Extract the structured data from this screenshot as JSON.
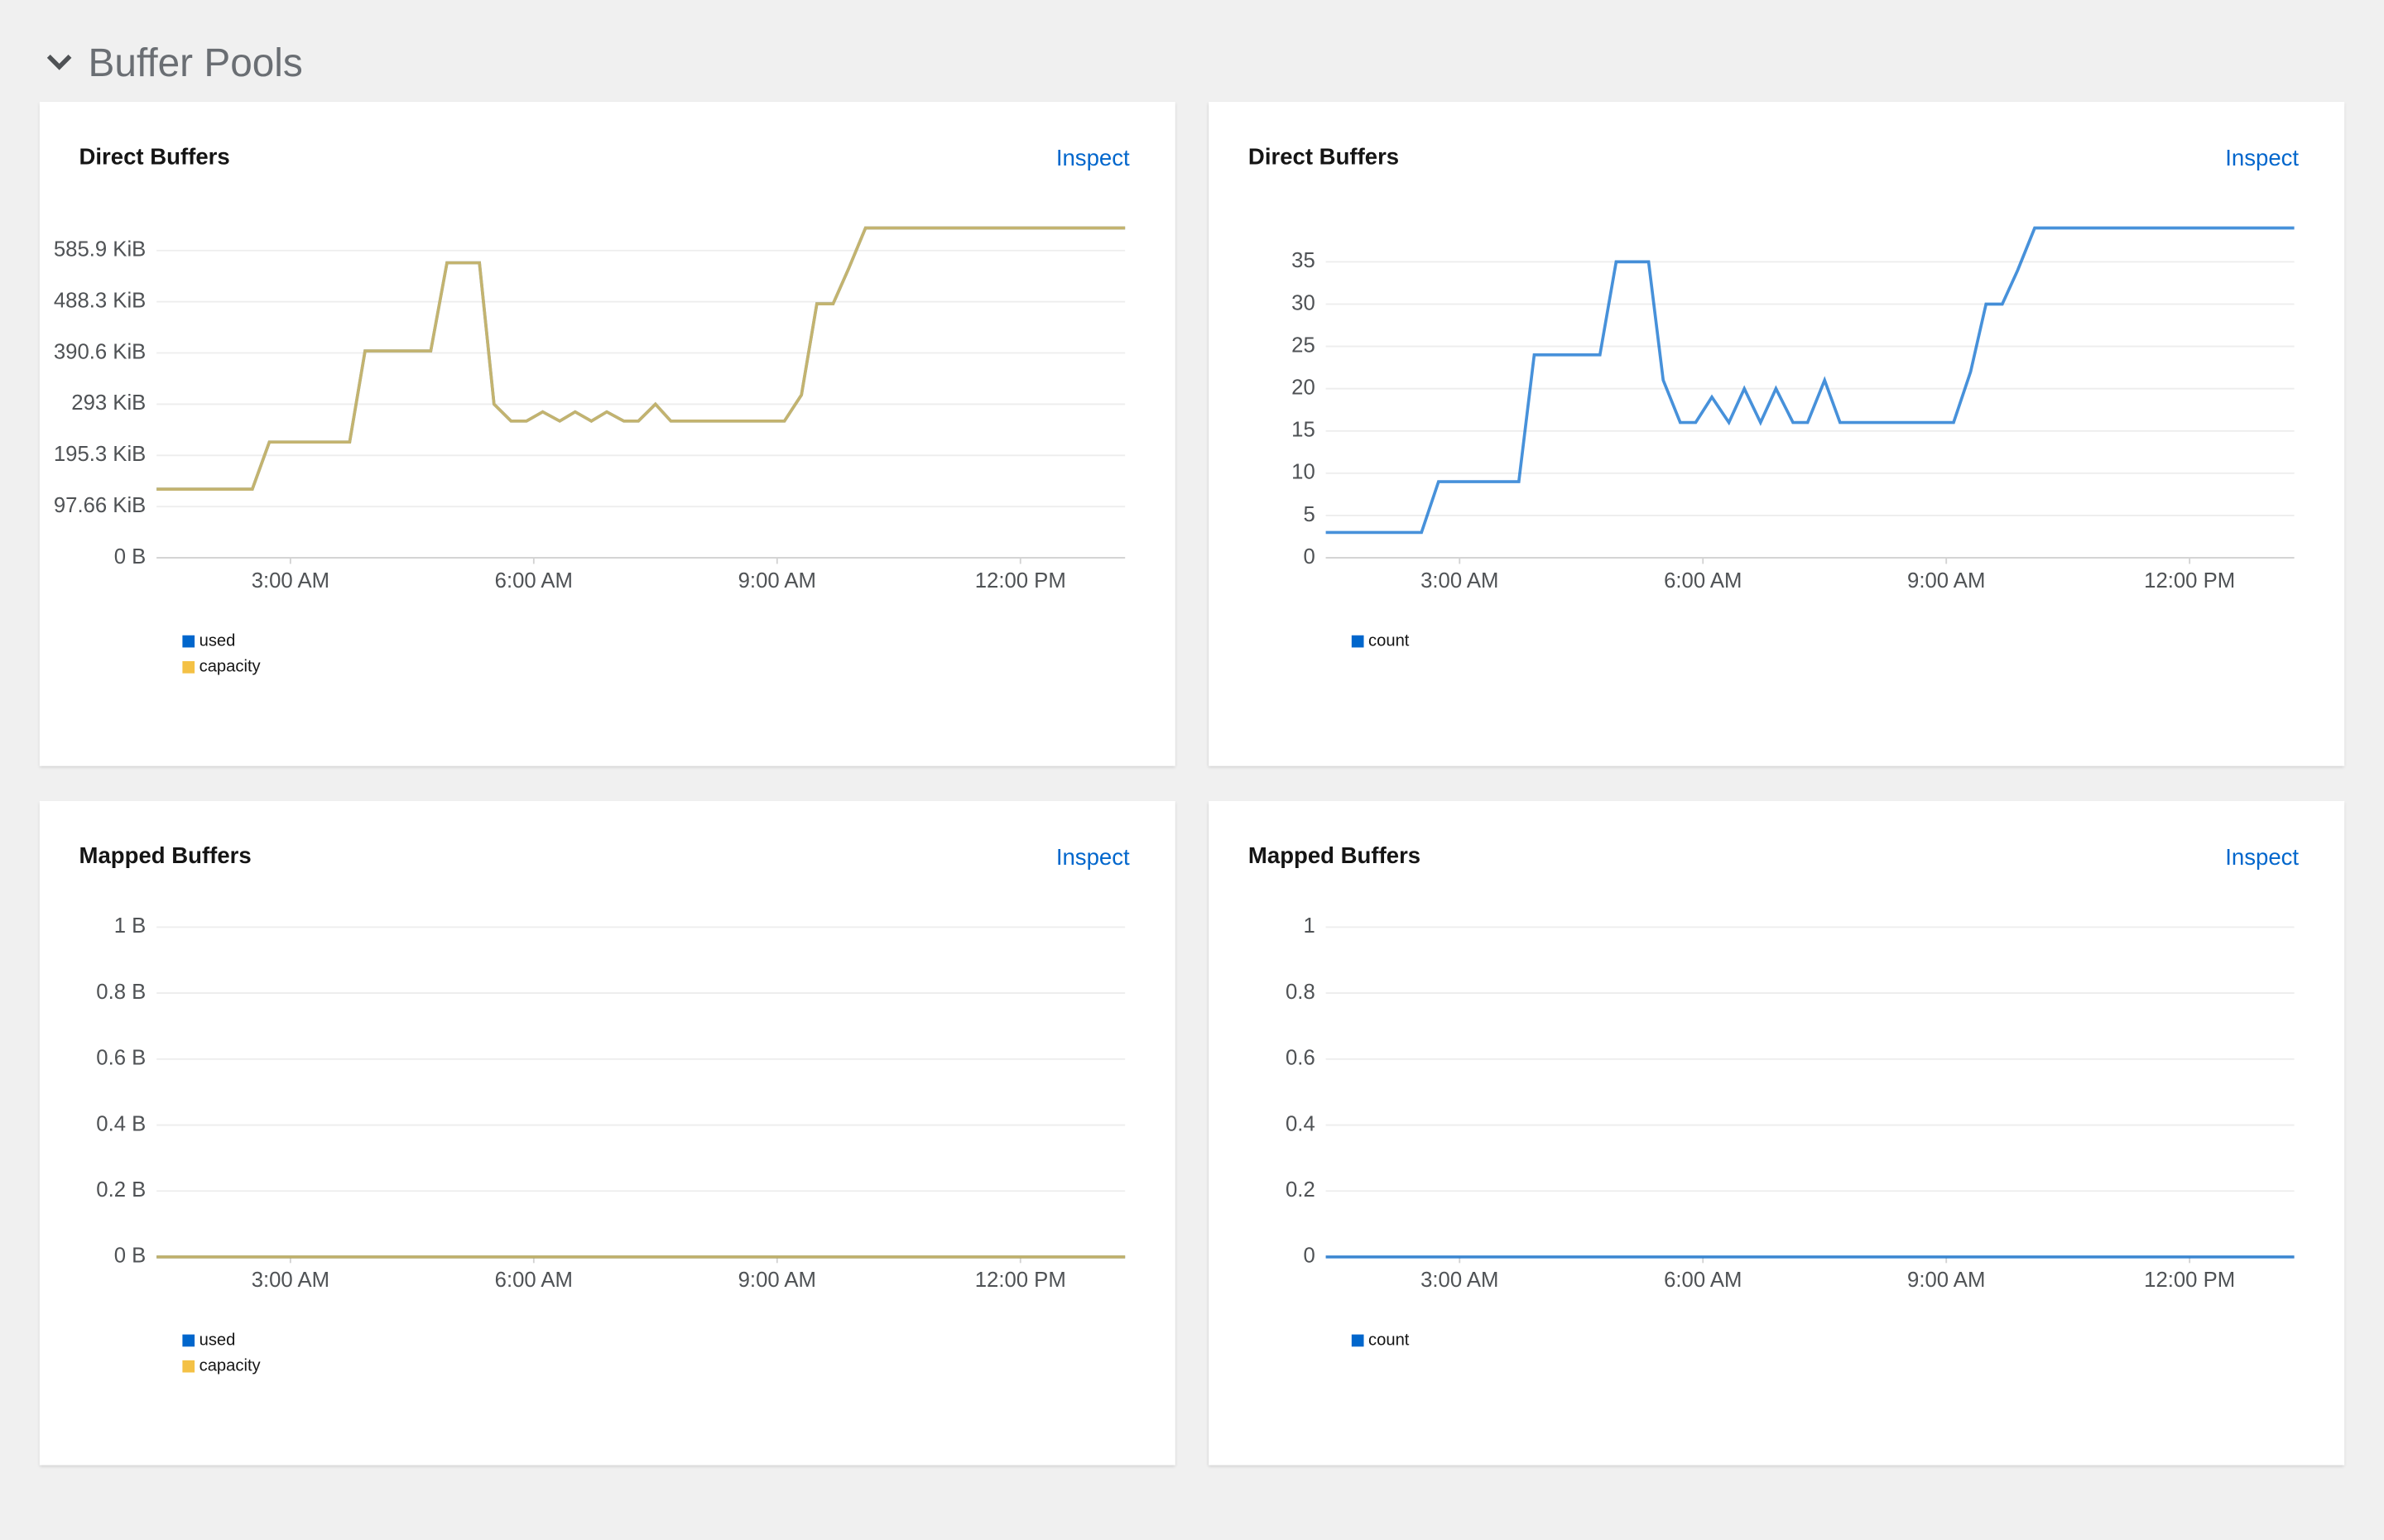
{
  "header": {
    "title": "Buffer Pools"
  },
  "chart_data": [
    {
      "type": "line",
      "title": "Direct Buffers",
      "link": "Inspect",
      "x": [
        1.35,
        2.53,
        2.74,
        3.73,
        3.92,
        4.73,
        4.93,
        5.33,
        5.51,
        5.72,
        5.91,
        6.11,
        6.32,
        6.51,
        6.71,
        6.9,
        7.11,
        7.29,
        7.5,
        7.69,
        9.09,
        9.3,
        9.49,
        9.69,
        9.88,
        10.09,
        13.29
      ],
      "xlim": [
        1.35,
        13.29
      ],
      "xticks": [
        {
          "value": 3,
          "label": "3:00 AM"
        },
        {
          "value": 6,
          "label": "6:00 AM"
        },
        {
          "value": 9,
          "label": "9:00 AM"
        },
        {
          "value": 12,
          "label": "12:00 PM"
        }
      ],
      "ylim": [
        0,
        644000
      ],
      "yticks": [
        {
          "value": 0,
          "label": "0 B"
        },
        {
          "value": 100000,
          "label": "97.66 KiB"
        },
        {
          "value": 200000,
          "label": "195.3 KiB"
        },
        {
          "value": 300000,
          "label": "293 KiB"
        },
        {
          "value": 400000,
          "label": "390.6 KiB"
        },
        {
          "value": 500000,
          "label": "488.3 KiB"
        },
        {
          "value": 600000,
          "label": "585.9 KiB"
        }
      ],
      "grid": true,
      "series": [
        {
          "name": "used",
          "color": "#0066cc",
          "values": [
            134000,
            134000,
            226000,
            226000,
            404000,
            404000,
            576000,
            576000,
            300000,
            267000,
            267000,
            285000,
            267000,
            285000,
            267000,
            285000,
            267000,
            267000,
            300000,
            267000,
            267000,
            318000,
            496000,
            496000,
            564000,
            644000,
            644000
          ]
        },
        {
          "name": "capacity",
          "color": "#f4c145",
          "values": [
            134000,
            134000,
            226000,
            226000,
            404000,
            404000,
            576000,
            576000,
            300000,
            267000,
            267000,
            285000,
            267000,
            285000,
            267000,
            285000,
            267000,
            267000,
            300000,
            267000,
            267000,
            318000,
            496000,
            496000,
            564000,
            644000,
            644000
          ]
        }
      ]
    },
    {
      "type": "line",
      "title": "Direct Buffers",
      "link": "Inspect",
      "x": [
        1.35,
        2.53,
        2.74,
        3.73,
        3.92,
        4.73,
        4.93,
        5.33,
        5.51,
        5.72,
        5.91,
        6.11,
        6.32,
        6.51,
        6.71,
        6.9,
        7.11,
        7.29,
        7.5,
        7.69,
        9.09,
        9.3,
        9.49,
        9.69,
        9.88,
        10.09,
        13.29
      ],
      "xlim": [
        1.35,
        13.29
      ],
      "xticks": [
        {
          "value": 3,
          "label": "3:00 AM"
        },
        {
          "value": 6,
          "label": "6:00 AM"
        },
        {
          "value": 9,
          "label": "9:00 AM"
        },
        {
          "value": 12,
          "label": "12:00 PM"
        }
      ],
      "ylim": [
        0,
        39
      ],
      "yticks": [
        0,
        5,
        10,
        15,
        20,
        25,
        30,
        35
      ],
      "grid": true,
      "series": [
        {
          "name": "count",
          "color": "#0066cc",
          "values": [
            3,
            3,
            9,
            9,
            24,
            24,
            35,
            35,
            21,
            16,
            16,
            19,
            16,
            20,
            16,
            20,
            16,
            16,
            21,
            16,
            16,
            22,
            30,
            30,
            34,
            39,
            39
          ]
        }
      ]
    },
    {
      "type": "line",
      "title": "Mapped Buffers",
      "link": "Inspect",
      "x": [
        1.35,
        13.29
      ],
      "xlim": [
        1.35,
        13.29
      ],
      "xticks": [
        {
          "value": 3,
          "label": "3:00 AM"
        },
        {
          "value": 6,
          "label": "6:00 AM"
        },
        {
          "value": 9,
          "label": "9:00 AM"
        },
        {
          "value": 12,
          "label": "12:00 PM"
        }
      ],
      "ylim": [
        0,
        1
      ],
      "yticks": [
        {
          "value": 0,
          "label": "0 B"
        },
        {
          "value": 0.2,
          "label": "0.2 B"
        },
        {
          "value": 0.4,
          "label": "0.4 B"
        },
        {
          "value": 0.6,
          "label": "0.6 B"
        },
        {
          "value": 0.8,
          "label": "0.8 B"
        },
        {
          "value": 1,
          "label": "1 B"
        }
      ],
      "grid": true,
      "series": [
        {
          "name": "used",
          "color": "#0066cc",
          "values": [
            0,
            0
          ]
        },
        {
          "name": "capacity",
          "color": "#f4c145",
          "values": [
            0,
            0
          ]
        }
      ]
    },
    {
      "type": "line",
      "title": "Mapped Buffers",
      "link": "Inspect",
      "x": [
        1.35,
        13.29
      ],
      "xlim": [
        1.35,
        13.29
      ],
      "xticks": [
        {
          "value": 3,
          "label": "3:00 AM"
        },
        {
          "value": 6,
          "label": "6:00 AM"
        },
        {
          "value": 9,
          "label": "9:00 AM"
        },
        {
          "value": 12,
          "label": "12:00 PM"
        }
      ],
      "ylim": [
        0,
        1
      ],
      "yticks": [
        0,
        0.2,
        0.4,
        0.6,
        0.8,
        1
      ],
      "grid": true,
      "series": [
        {
          "name": "count",
          "color": "#0066cc",
          "values": [
            0,
            0
          ]
        }
      ]
    }
  ]
}
